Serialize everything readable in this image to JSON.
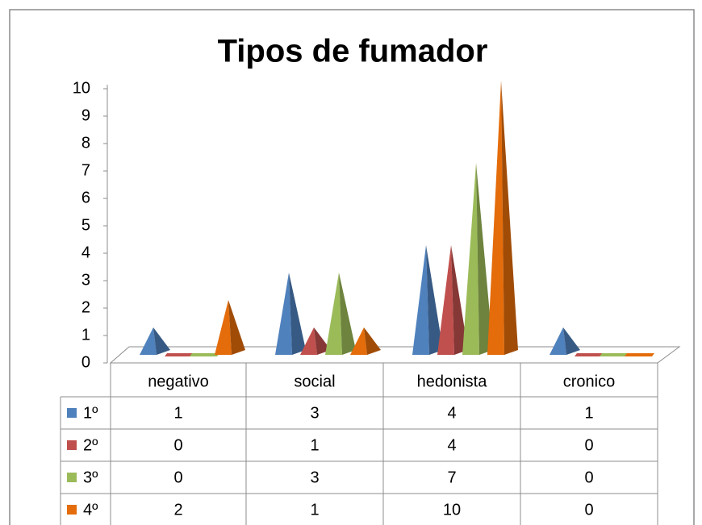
{
  "chart_data": {
    "type": "pyramid",
    "title": "Tipos de fumador",
    "categories": [
      "negativo",
      "social",
      "hedonista",
      "cronico"
    ],
    "series": [
      {
        "name": "1º",
        "color": "#4f81bd",
        "values": [
          1,
          3,
          4,
          1
        ]
      },
      {
        "name": "2º",
        "color": "#c0504d",
        "values": [
          0,
          1,
          4,
          0
        ]
      },
      {
        "name": "3º",
        "color": "#9bbb59",
        "values": [
          0,
          3,
          7,
          0
        ]
      },
      {
        "name": "4º",
        "color": "#e46c0a",
        "values": [
          2,
          1,
          10,
          0
        ]
      }
    ],
    "ylim": [
      0,
      10
    ],
    "yticks": [
      0,
      1,
      2,
      3,
      4,
      5,
      6,
      7,
      8,
      9,
      10
    ]
  }
}
